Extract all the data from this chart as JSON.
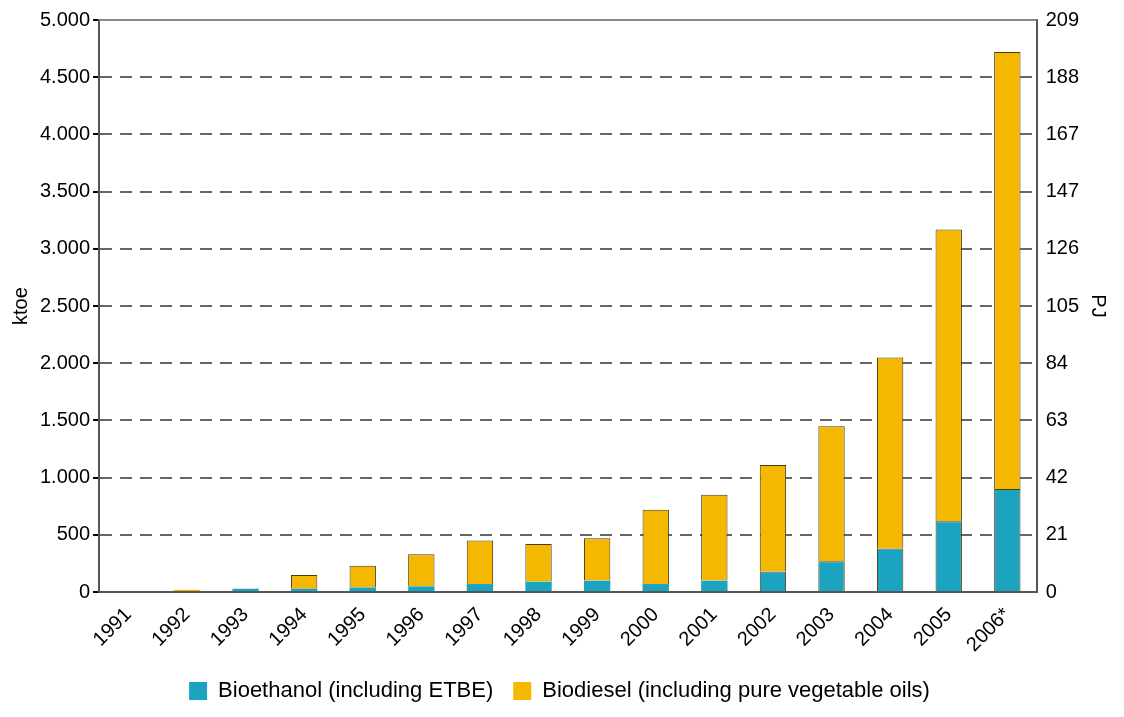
{
  "chart_data": {
    "type": "bar",
    "stacked": true,
    "ylabel": "ktoe",
    "y2label": "PJ",
    "categories": [
      "1991",
      "1992",
      "1993",
      "1994",
      "1995",
      "1996",
      "1997",
      "1998",
      "1999",
      "2000",
      "2001",
      "2002",
      "2003",
      "2004",
      "2005",
      "2006*"
    ],
    "series": [
      {
        "name": "Bioethanol (including ETBE)",
        "color": "#1ba3c0",
        "values": [
          0,
          0,
          30,
          30,
          40,
          50,
          70,
          90,
          100,
          70,
          100,
          180,
          270,
          380,
          620,
          900
        ]
      },
      {
        "name": "Biodiesel (including pure vegetable oils)",
        "color": "#f5b800",
        "values": [
          0,
          20,
          0,
          120,
          190,
          280,
          380,
          330,
          370,
          650,
          750,
          930,
          1180,
          1670,
          2550,
          3820
        ]
      }
    ],
    "ylim": [
      0,
      5000
    ],
    "yticks": [
      0,
      500,
      {
        "value": 1000,
        "label": "1.000"
      },
      {
        "value": 1500,
        "label": "1.500"
      },
      {
        "value": 2000,
        "label": "2.000"
      },
      {
        "value": 2500,
        "label": "2.500"
      },
      {
        "value": 3000,
        "label": "3.000"
      },
      {
        "value": 3500,
        "label": "3.500"
      },
      {
        "value": 4000,
        "label": "4.000"
      },
      {
        "value": 4500,
        "label": "4.500"
      },
      {
        "value": 5000,
        "label": "5.000"
      }
    ],
    "y2lim": [
      0,
      209.34
    ],
    "y2ticks": [
      0,
      {
        "value": 20.93,
        "label": "21"
      },
      {
        "value": 41.87,
        "label": "42"
      },
      {
        "value": 62.8,
        "label": "63"
      },
      {
        "value": 83.74,
        "label": "84"
      },
      {
        "value": 104.67,
        "label": "105"
      },
      {
        "value": 125.6,
        "label": "126"
      },
      {
        "value": 146.54,
        "label": "147"
      },
      {
        "value": 167.47,
        "label": "167"
      },
      {
        "value": 188.41,
        "label": "188"
      },
      {
        "value": 209.34,
        "label": "209"
      }
    ],
    "grid": "y",
    "legend": "bottom"
  }
}
